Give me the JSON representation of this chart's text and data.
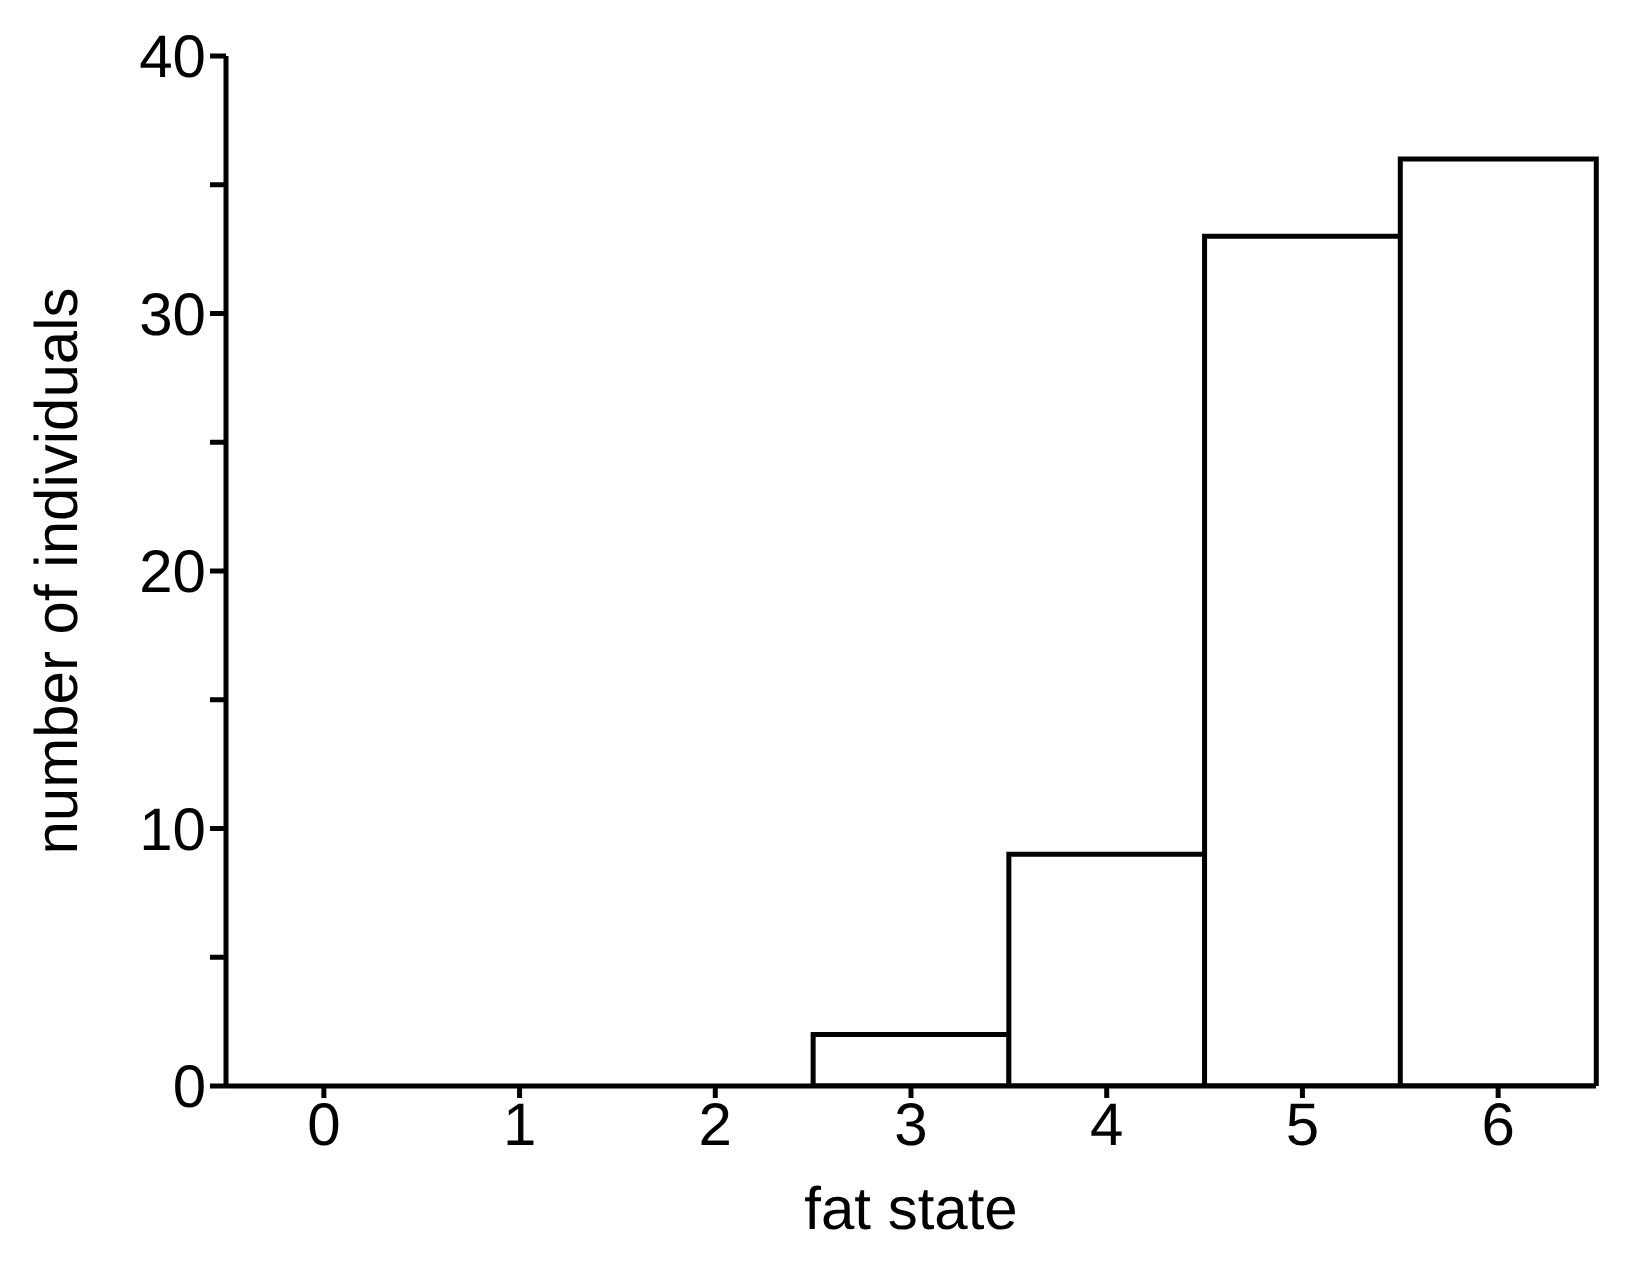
{
  "chart_data": {
    "type": "bar",
    "xlabel": "fat state",
    "ylabel": "number of individuals",
    "categories": [
      "0",
      "1",
      "2",
      "3",
      "4",
      "5",
      "6"
    ],
    "values": [
      0,
      0,
      0,
      2,
      9,
      33,
      36
    ],
    "color": "#ffffff",
    "ylim": [
      0,
      40
    ],
    "yticks": [
      0,
      {
        "value": 5,
        "label": null
      },
      10,
      {
        "value": 15,
        "label": null
      },
      20,
      {
        "value": 25,
        "label": null
      },
      30,
      {
        "value": 35,
        "label": null
      },
      40
    ],
    "grid": false,
    "legend": false
  }
}
